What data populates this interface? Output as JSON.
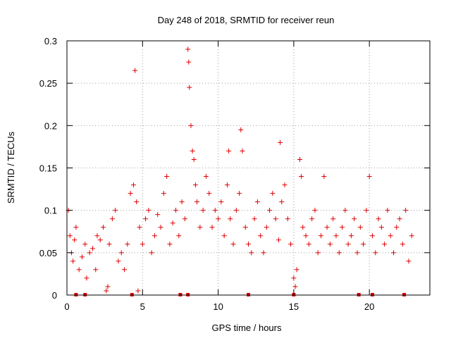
{
  "chart_data": {
    "type": "scatter",
    "title": "Day 248 of 2018, SRMTID for receiver reun",
    "xlabel": "GPS time / hours",
    "ylabel": "SRMTID / TECUs",
    "xlim": [
      0,
      24
    ],
    "ylim": [
      0,
      0.3
    ],
    "x_ticks": [
      0,
      5,
      10,
      15,
      20
    ],
    "x_tick_labels": [
      "0",
      "5",
      "10",
      "15",
      "20"
    ],
    "y_ticks": [
      0,
      0.05,
      0.1,
      0.15,
      0.2,
      0.25,
      0.3
    ],
    "y_tick_labels": [
      "0",
      "0.05",
      "0.1",
      "0.15",
      "0.2",
      "0.25",
      "0.3"
    ],
    "grid": true,
    "marker": "+",
    "color": "#e00000",
    "series": [
      {
        "name": "SRMTID",
        "points": [
          [
            0.1,
            0.1
          ],
          [
            0.2,
            0.07
          ],
          [
            0.3,
            0.05
          ],
          [
            0.4,
            0.04
          ],
          [
            0.5,
            0.065
          ],
          [
            0.6,
            0.08
          ],
          [
            0.8,
            0.03
          ],
          [
            1.0,
            0.045
          ],
          [
            1.2,
            0.06
          ],
          [
            1.3,
            0.02
          ],
          [
            1.5,
            0.05
          ],
          [
            1.7,
            0.055
          ],
          [
            1.9,
            0.03
          ],
          [
            2.0,
            0.07
          ],
          [
            2.2,
            0.065
          ],
          [
            2.4,
            0.08
          ],
          [
            2.6,
            0.005
          ],
          [
            2.7,
            0.01
          ],
          [
            2.8,
            0.06
          ],
          [
            3.0,
            0.09
          ],
          [
            3.2,
            0.1
          ],
          [
            3.4,
            0.04
          ],
          [
            3.6,
            0.05
          ],
          [
            3.8,
            0.03
          ],
          [
            4.0,
            0.06
          ],
          [
            4.2,
            0.12
          ],
          [
            4.4,
            0.13
          ],
          [
            4.5,
            0.265
          ],
          [
            4.6,
            0.11
          ],
          [
            4.7,
            0.005
          ],
          [
            4.8,
            0.08
          ],
          [
            5.0,
            0.06
          ],
          [
            5.2,
            0.09
          ],
          [
            5.4,
            0.1
          ],
          [
            5.6,
            0.05
          ],
          [
            5.8,
            0.07
          ],
          [
            6.0,
            0.095
          ],
          [
            6.2,
            0.08
          ],
          [
            6.4,
            0.12
          ],
          [
            6.6,
            0.14
          ],
          [
            6.8,
            0.06
          ],
          [
            7.0,
            0.085
          ],
          [
            7.2,
            0.1
          ],
          [
            7.4,
            0.07
          ],
          [
            7.6,
            0.11
          ],
          [
            7.8,
            0.09
          ],
          [
            8.0,
            0.29
          ],
          [
            8.05,
            0.275
          ],
          [
            8.1,
            0.245
          ],
          [
            8.2,
            0.2
          ],
          [
            8.3,
            0.17
          ],
          [
            8.4,
            0.16
          ],
          [
            8.5,
            0.13
          ],
          [
            8.6,
            0.11
          ],
          [
            8.8,
            0.08
          ],
          [
            9.0,
            0.1
          ],
          [
            9.2,
            0.14
          ],
          [
            9.4,
            0.12
          ],
          [
            9.6,
            0.08
          ],
          [
            9.8,
            0.1
          ],
          [
            10.0,
            0.09
          ],
          [
            10.2,
            0.11
          ],
          [
            10.4,
            0.07
          ],
          [
            10.6,
            0.13
          ],
          [
            10.7,
            0.17
          ],
          [
            10.8,
            0.09
          ],
          [
            11.0,
            0.06
          ],
          [
            11.2,
            0.1
          ],
          [
            11.4,
            0.12
          ],
          [
            11.5,
            0.195
          ],
          [
            11.6,
            0.17
          ],
          [
            11.8,
            0.08
          ],
          [
            12.0,
            0.06
          ],
          [
            12.2,
            0.05
          ],
          [
            12.4,
            0.09
          ],
          [
            12.6,
            0.11
          ],
          [
            12.8,
            0.07
          ],
          [
            13.0,
            0.05
          ],
          [
            13.2,
            0.08
          ],
          [
            13.4,
            0.1
          ],
          [
            13.6,
            0.12
          ],
          [
            13.8,
            0.09
          ],
          [
            14.0,
            0.065
          ],
          [
            14.1,
            0.18
          ],
          [
            14.2,
            0.11
          ],
          [
            14.4,
            0.13
          ],
          [
            14.6,
            0.09
          ],
          [
            14.8,
            0.06
          ],
          [
            15.0,
            0.02
          ],
          [
            15.1,
            0.01
          ],
          [
            15.2,
            0.03
          ],
          [
            15.4,
            0.16
          ],
          [
            15.5,
            0.14
          ],
          [
            15.6,
            0.08
          ],
          [
            15.8,
            0.07
          ],
          [
            16.0,
            0.06
          ],
          [
            16.2,
            0.09
          ],
          [
            16.4,
            0.1
          ],
          [
            16.6,
            0.05
          ],
          [
            16.8,
            0.07
          ],
          [
            17.0,
            0.14
          ],
          [
            17.2,
            0.08
          ],
          [
            17.4,
            0.06
          ],
          [
            17.6,
            0.09
          ],
          [
            17.8,
            0.07
          ],
          [
            18.0,
            0.05
          ],
          [
            18.2,
            0.08
          ],
          [
            18.4,
            0.1
          ],
          [
            18.6,
            0.06
          ],
          [
            18.8,
            0.07
          ],
          [
            19.0,
            0.09
          ],
          [
            19.2,
            0.05
          ],
          [
            19.4,
            0.08
          ],
          [
            19.6,
            0.06
          ],
          [
            19.8,
            0.1
          ],
          [
            20.0,
            0.14
          ],
          [
            20.2,
            0.07
          ],
          [
            20.4,
            0.05
          ],
          [
            20.6,
            0.09
          ],
          [
            20.8,
            0.08
          ],
          [
            21.0,
            0.06
          ],
          [
            21.2,
            0.1
          ],
          [
            21.4,
            0.07
          ],
          [
            21.6,
            0.05
          ],
          [
            21.8,
            0.08
          ],
          [
            22.0,
            0.09
          ],
          [
            22.2,
            0.06
          ],
          [
            22.4,
            0.1
          ],
          [
            22.6,
            0.04
          ],
          [
            22.8,
            0.07
          ]
        ],
        "zero_markers": [
          0.6,
          1.2,
          4.3,
          7.5,
          8.0,
          12.0,
          15.0,
          19.3,
          20.2,
          22.3
        ]
      }
    ]
  }
}
